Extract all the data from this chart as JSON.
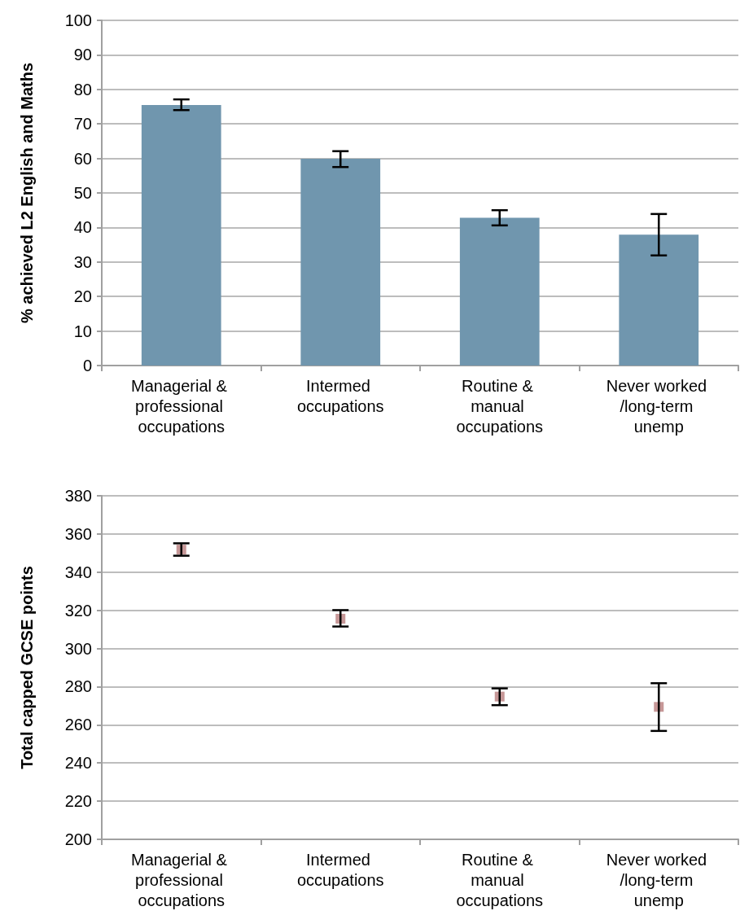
{
  "chart_data": [
    {
      "type": "bar",
      "ylabel": "% achieved L2 English and Maths",
      "categories": [
        "Managerial & professional occupations",
        "Intermed occupations",
        "Routine & manual occupations",
        "Never worked /long-term unemp"
      ],
      "values": [
        75.5,
        59.9,
        42.8,
        37.9
      ],
      "color": "#7096ae",
      "errors": [
        [
          74.0,
          77.1
        ],
        [
          57.5,
          62.1
        ],
        [
          40.6,
          45.0
        ],
        [
          31.9,
          43.9
        ]
      ],
      "ylim": [
        0,
        100
      ],
      "yticks": [
        0,
        10,
        20,
        30,
        40,
        50,
        60,
        70,
        80,
        90,
        100
      ],
      "grid": "y"
    },
    {
      "type": "scatter",
      "ylabel": "Total capped GCSE points",
      "categories": [
        "Managerial & professional occupations",
        "Intermed occupations",
        "Routine & manual occupations",
        "Never worked /long-term unemp"
      ],
      "values": [
        351.8,
        315.6,
        274.8,
        269.4
      ],
      "color": "#b87d7d",
      "marker": "square",
      "errors": [
        [
          348.6,
          355.1
        ],
        [
          311.5,
          320.1
        ],
        [
          270.3,
          279.1
        ],
        [
          256.8,
          281.8
        ]
      ],
      "ylim": [
        200,
        380
      ],
      "yticks": [
        200,
        220,
        240,
        260,
        280,
        300,
        320,
        340,
        360,
        380
      ],
      "grid": "y"
    }
  ]
}
